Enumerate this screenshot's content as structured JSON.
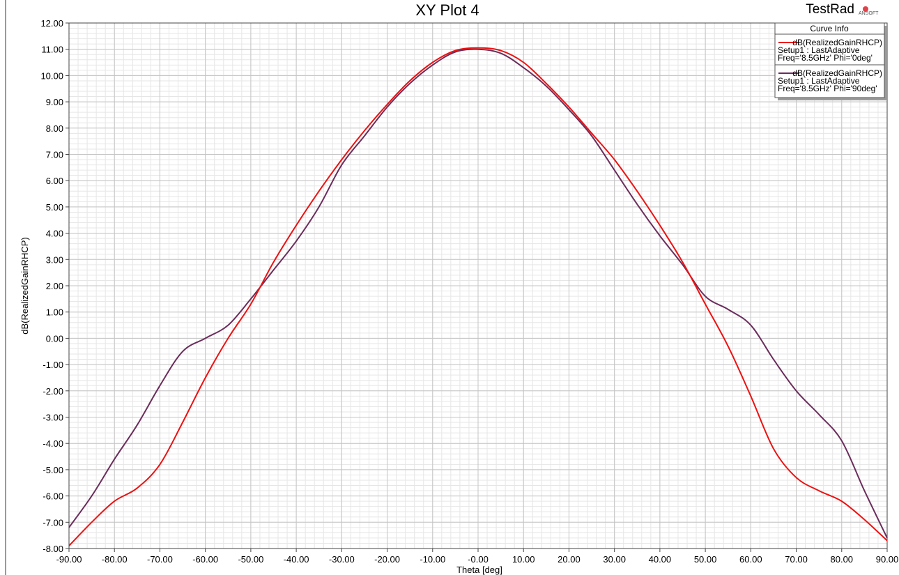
{
  "chart_data": {
    "type": "line",
    "title": "XY Plot 4",
    "project_label": "TestRad",
    "brand_label": "ANSOFT",
    "xlabel": "Theta [deg]",
    "ylabel": "dB(RealizedGainRHCP)",
    "xlim": [
      -90,
      90
    ],
    "ylim": [
      -8,
      12
    ],
    "x_ticks": [
      "-90.00",
      "-80.00",
      "-70.00",
      "-60.00",
      "-50.00",
      "-40.00",
      "-30.00",
      "-20.00",
      "-10.00",
      "-0.00",
      "10.00",
      "20.00",
      "30.00",
      "40.00",
      "50.00",
      "60.00",
      "70.00",
      "80.00",
      "90.00"
    ],
    "y_ticks": [
      "12.00",
      "11.00",
      "10.00",
      "9.00",
      "8.00",
      "7.00",
      "6.00",
      "5.00",
      "4.00",
      "3.00",
      "2.00",
      "1.00",
      "0.00",
      "-1.00",
      "-2.00",
      "-3.00",
      "-4.00",
      "-5.00",
      "-6.00",
      "-7.00",
      "-8.00"
    ],
    "grid": true,
    "legend": {
      "title": "Curve Info",
      "placement": "top-right",
      "entries": [
        {
          "name": "dB(RealizedGainRHCP)",
          "line2": "Setup1 : LastAdaptive",
          "line3": "Freq='8.5GHz' Phi='0deg'",
          "color": "#ee1111"
        },
        {
          "name": "dB(RealizedGainRHCP)",
          "line2": "Setup1 : LastAdaptive",
          "line3": "Freq='8.5GHz' Phi='90deg'",
          "color": "#6b2d5c"
        }
      ]
    },
    "x": [
      -90,
      -85,
      -80,
      -75,
      -70,
      -65,
      -60,
      -55,
      -50,
      -45,
      -40,
      -35,
      -30,
      -25,
      -20,
      -15,
      -10,
      -5,
      0,
      5,
      10,
      15,
      20,
      25,
      30,
      35,
      40,
      45,
      50,
      55,
      60,
      65,
      70,
      75,
      80,
      85,
      90
    ],
    "series": [
      {
        "name": "dB(RealizedGainRHCP) Setup1 : LastAdaptive Freq='8.5GHz' Phi='0deg'",
        "color": "#ee1111",
        "values": [
          -7.9,
          -7.0,
          -6.2,
          -5.7,
          -4.8,
          -3.2,
          -1.5,
          0.0,
          1.3,
          2.9,
          4.3,
          5.6,
          6.8,
          7.9,
          8.9,
          9.8,
          10.5,
          10.95,
          11.05,
          10.95,
          10.5,
          9.7,
          8.8,
          7.8,
          6.8,
          5.6,
          4.3,
          2.9,
          1.3,
          -0.3,
          -2.2,
          -4.2,
          -5.3,
          -5.8,
          -6.2,
          -6.9,
          -7.7
        ]
      },
      {
        "name": "dB(RealizedGainRHCP) Setup1 : LastAdaptive Freq='8.5GHz' Phi='90deg'",
        "color": "#6b2d5c",
        "values": [
          -7.2,
          -6.0,
          -4.6,
          -3.3,
          -1.8,
          -0.5,
          0.0,
          0.5,
          1.5,
          2.6,
          3.7,
          5.0,
          6.6,
          7.7,
          8.8,
          9.7,
          10.4,
          10.9,
          11.0,
          10.85,
          10.3,
          9.6,
          8.7,
          7.7,
          6.4,
          5.1,
          3.9,
          2.8,
          1.6,
          1.1,
          0.5,
          -0.8,
          -2.0,
          -2.9,
          -3.9,
          -5.8,
          -7.6
        ]
      }
    ]
  }
}
